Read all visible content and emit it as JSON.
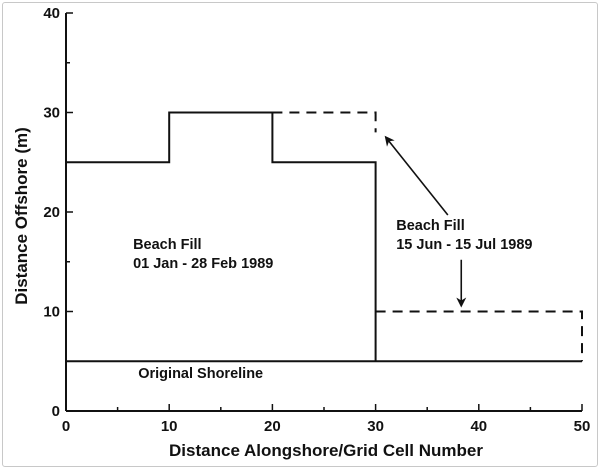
{
  "chart_data": {
    "type": "line",
    "xlabel": "Distance Alongshore/Grid Cell Number",
    "ylabel": "Distance Offshore (m)",
    "xlim": [
      0,
      50
    ],
    "ylim": [
      0,
      40
    ],
    "xticks": [
      0,
      10,
      20,
      30,
      40,
      50
    ],
    "yticks": [
      0,
      10,
      20,
      30,
      40
    ],
    "grid": false,
    "series": [
      {
        "style": "solid",
        "x": [
          0,
          10,
          10,
          20,
          20,
          30,
          30
        ],
        "y": [
          25,
          25,
          30,
          30,
          25,
          25,
          5
        ]
      },
      {
        "style": "dashed",
        "x": [
          20,
          30,
          30
        ],
        "y": [
          30,
          30,
          28
        ]
      },
      {
        "style": "dashed",
        "x": [
          30,
          50,
          50
        ],
        "y": [
          10,
          10,
          5
        ]
      },
      {
        "style": "solid",
        "x": [
          0,
          50
        ],
        "y": [
          5,
          5
        ]
      }
    ],
    "annotations": [
      {
        "id": "fill1",
        "lines": [
          "Beach Fill",
          "01 Jan - 28 Feb 1989"
        ],
        "x": 6.5,
        "y": 16.3
      },
      {
        "id": "fill2",
        "lines": [
          "Beach Fill",
          "15 Jun - 15 Jul 1989"
        ],
        "x": 32,
        "y": 18.2
      },
      {
        "id": "shoreline",
        "lines": [
          "Original Shoreline"
        ],
        "x": 7,
        "y": 3.3
      }
    ],
    "arrows": [
      {
        "from": [
          37,
          19.7
        ],
        "to": [
          31,
          27.5
        ]
      },
      {
        "from": [
          38.3,
          15.2
        ],
        "to": [
          38.3,
          10.6
        ]
      }
    ]
  }
}
